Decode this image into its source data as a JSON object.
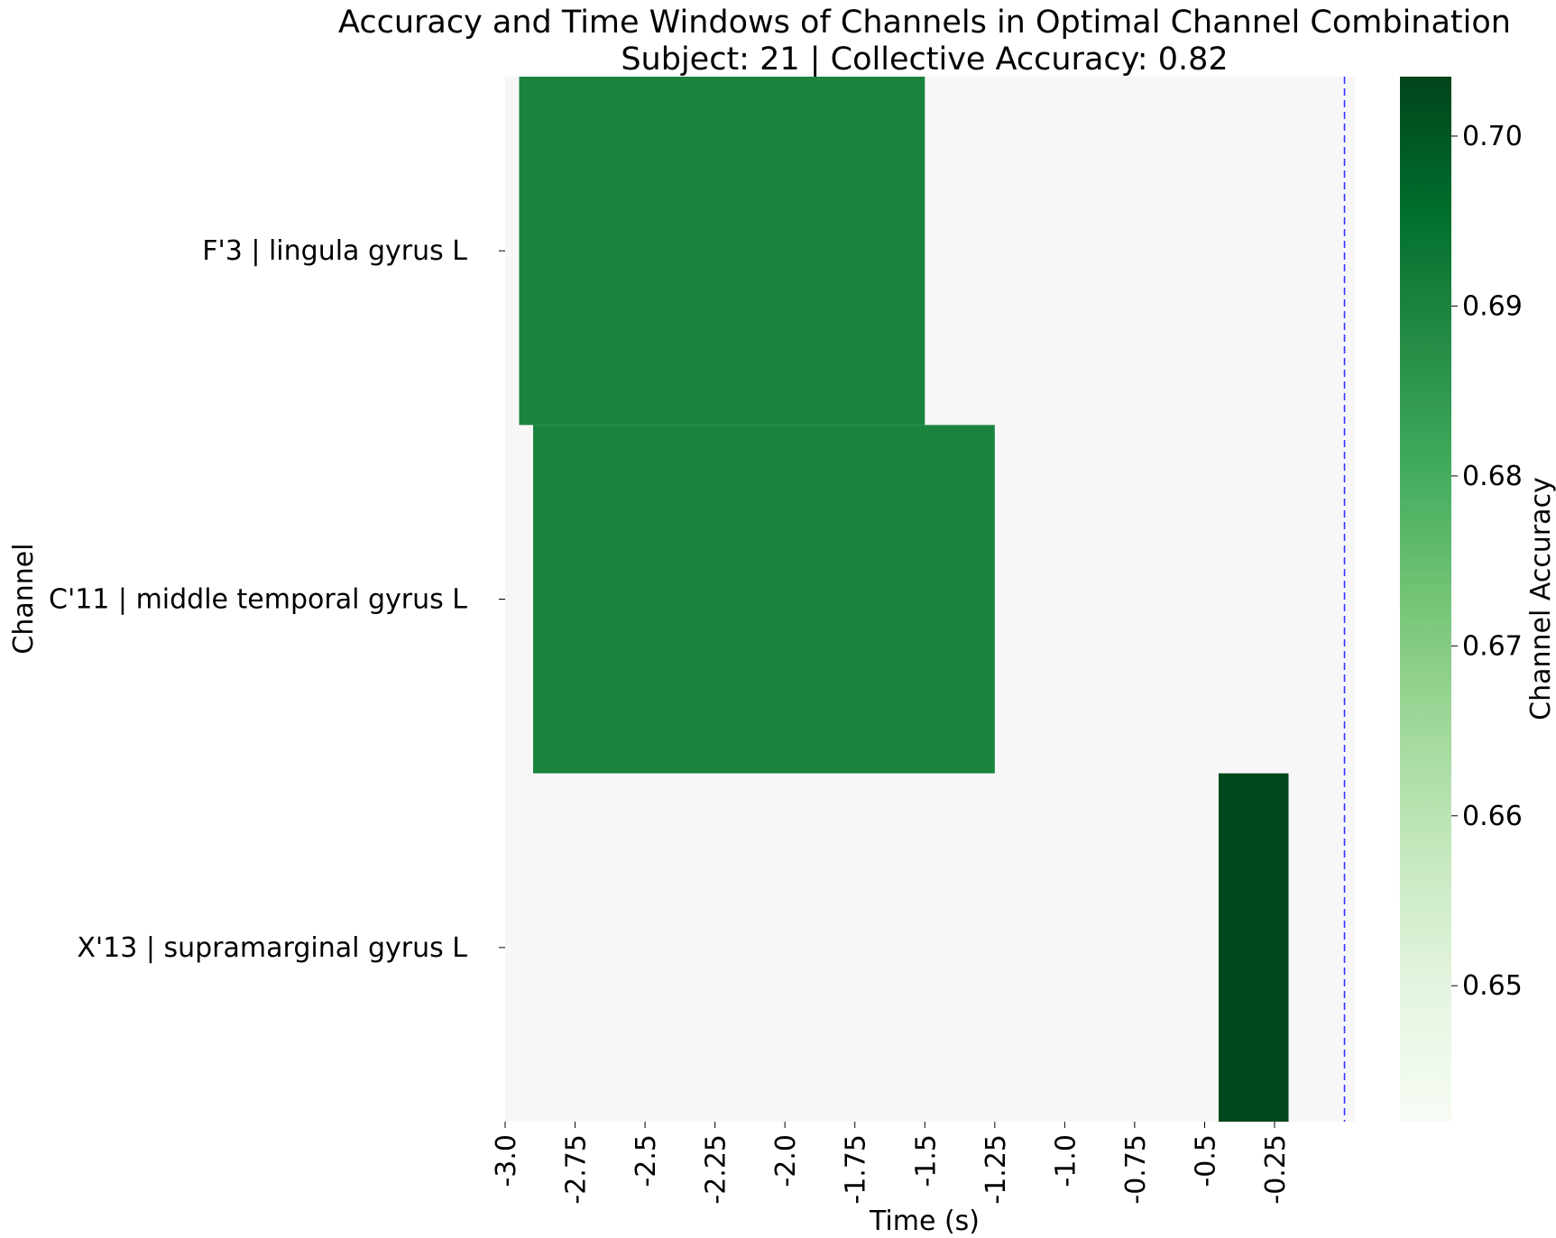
{
  "chart_data": {
    "type": "heatmap",
    "title": "Accuracy and Time Windows of Channels in Optimal Channel Combination",
    "subtitle": "Subject: 21 | Collective Accuracy: 0.82",
    "xlabel": "Time (s)",
    "ylabel": "Channel",
    "xlim": [
      -3.0,
      0.0
    ],
    "x_ticks": [
      -3.0,
      -2.75,
      -2.5,
      -2.25,
      -2.0,
      -1.75,
      -1.5,
      -1.25,
      -1.0,
      -0.75,
      -0.5,
      -0.25
    ],
    "x_tick_labels": [
      "-3.0",
      "-2.75",
      "-2.5",
      "-2.25",
      "-2.0",
      "-1.75",
      "-1.5",
      "-1.25",
      "-1.0",
      "-0.75",
      "-0.5",
      "-0.25"
    ],
    "channels": [
      "F'3 | lingula gyrus L",
      "C'11 | middle temporal gyrus L",
      "X'13 | supramarginal gyrus L"
    ],
    "windows": [
      {
        "channel": "F'3 | lingula gyrus L",
        "start": -2.95,
        "end": -1.5,
        "accuracy": 0.69
      },
      {
        "channel": "C'11 | middle temporal gyrus L",
        "start": -2.9,
        "end": -1.25,
        "accuracy": 0.69
      },
      {
        "channel": "X'13 | supramarginal gyrus L",
        "start": -0.45,
        "end": -0.2,
        "accuracy": 0.703
      }
    ],
    "reference_line_x": 0.0,
    "colorbar": {
      "label": "Channel Accuracy",
      "min": 0.642,
      "max": 0.7035,
      "ticks": [
        0.65,
        0.66,
        0.67,
        0.68,
        0.69,
        0.7
      ],
      "tick_labels": [
        "0.65",
        "0.66",
        "0.67",
        "0.68",
        "0.69",
        "0.70"
      ],
      "colormap": "Greens"
    },
    "background_color": "#f7f7f7",
    "reference_line_color": "#3333ff",
    "grid": false
  }
}
